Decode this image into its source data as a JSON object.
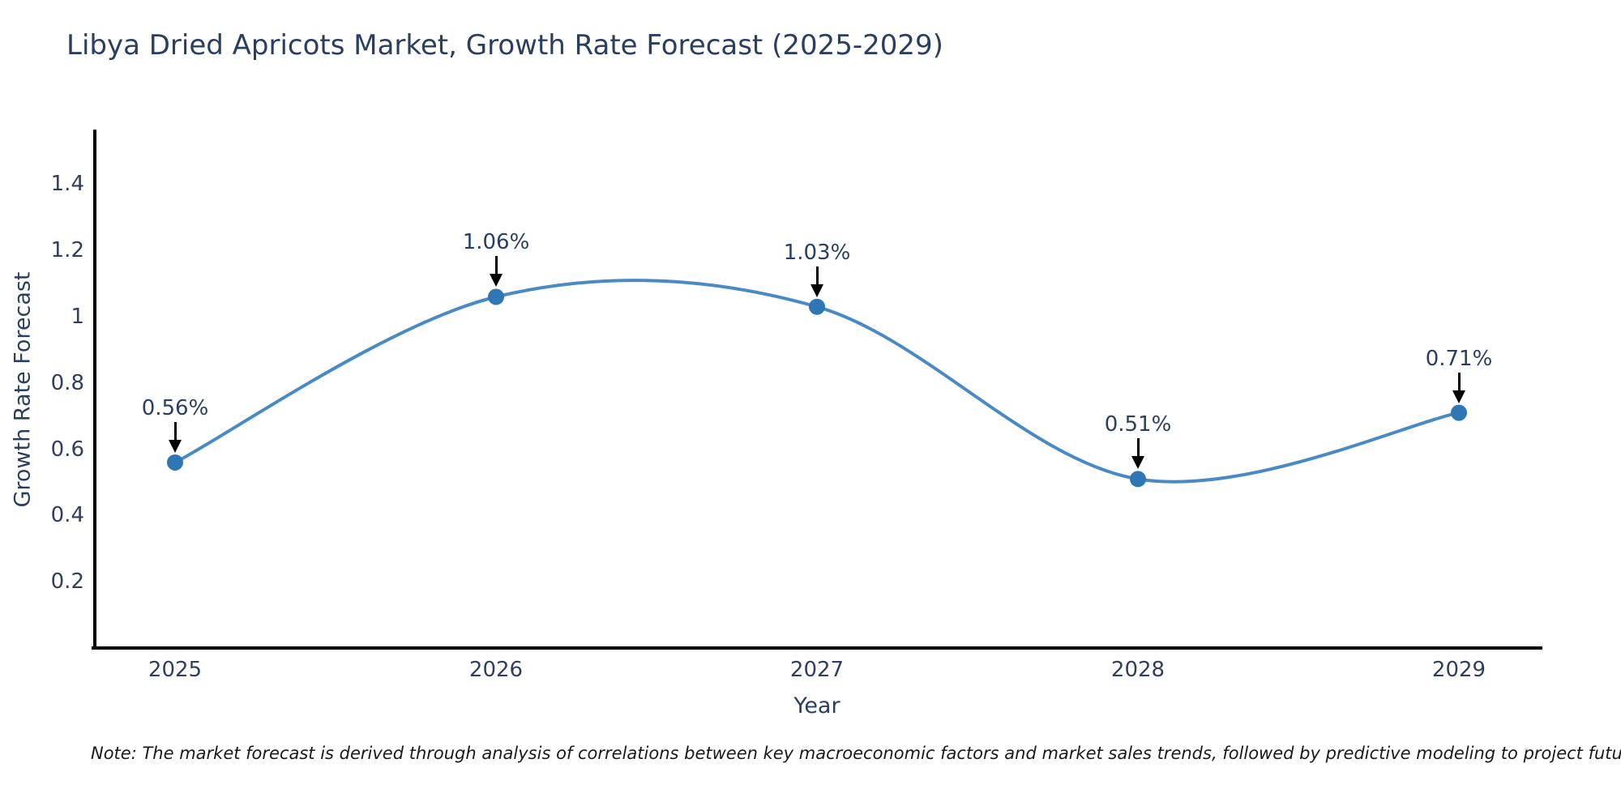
{
  "title": "Libya Dried Apricots Market, Growth Rate Forecast (2025-2029)",
  "note": "Note: The market forecast is derived through analysis of correlations between key macroeconomic factors and market sales trends, followed by predictive modeling to project future sales trends.",
  "chart_data": {
    "type": "line",
    "title": "Libya Dried Apricots Market, Growth Rate Forecast (2025-2029)",
    "xlabel": "Year",
    "ylabel": "Growth Rate Forecast",
    "categories": [
      "2025",
      "2026",
      "2027",
      "2028",
      "2029"
    ],
    "values": [
      0.56,
      1.06,
      1.03,
      0.51,
      0.71
    ],
    "point_labels": [
      "0.56%",
      "1.06%",
      "1.03%",
      "0.51%",
      "0.71%"
    ],
    "ytick_values": [
      0.2,
      0.4,
      0.6,
      0.8,
      1,
      1.2,
      1.4
    ],
    "ytick_labels": [
      "0.2",
      "0.4",
      "0.6",
      "0.8",
      "1",
      "1.2",
      "1.4"
    ],
    "ylim": [
      0,
      1.56
    ],
    "line_shape": "spline",
    "grid": false,
    "legend": "none",
    "colors": {
      "line": "#4a8ac4",
      "marker": "#2f76b5",
      "arrow": "#000000",
      "text": "#2a3f5f",
      "axis": "#000000",
      "background": "#ffffff"
    }
  }
}
